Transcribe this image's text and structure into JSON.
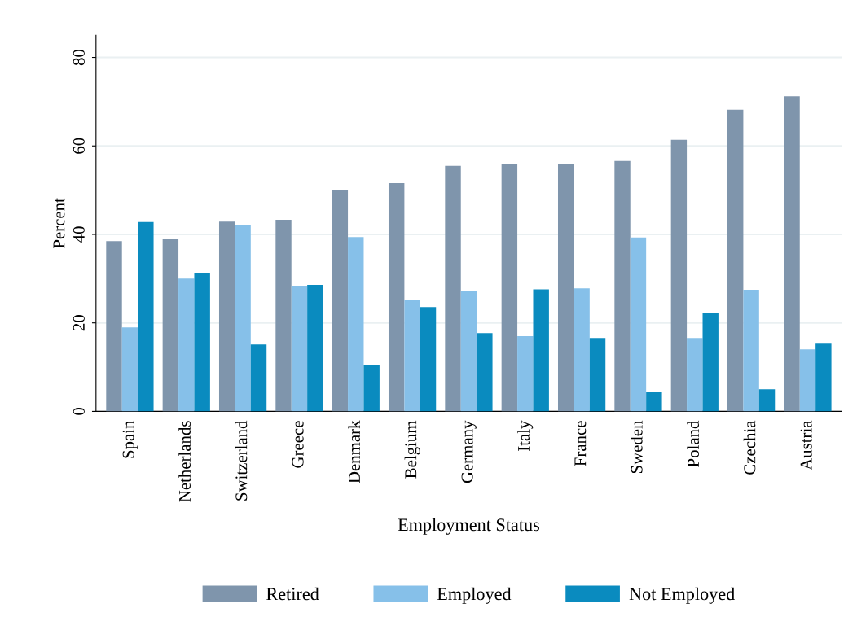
{
  "chart_data": {
    "type": "bar",
    "xlabel": "Employment Status",
    "ylabel": "Percent",
    "categories": [
      "Spain",
      "Netherlands",
      "Switzerland",
      "Greece",
      "Denmark",
      "Belgium",
      "Germany",
      "Italy",
      "France",
      "Sweden",
      "Poland",
      "Czechia",
      "Austria"
    ],
    "series": [
      {
        "name": "Retired",
        "color": "#7f95ac",
        "values": [
          38.5,
          38.9,
          42.9,
          43.3,
          50.1,
          51.6,
          55.5,
          56.0,
          56.0,
          56.6,
          61.4,
          68.2,
          71.2
        ]
      },
      {
        "name": "Employed",
        "color": "#86c0e9",
        "values": [
          19.0,
          30.0,
          42.2,
          28.4,
          39.4,
          25.1,
          27.1,
          17.0,
          27.8,
          39.3,
          16.6,
          27.5,
          14.0
        ]
      },
      {
        "name": "Not Employed",
        "color": "#0a8bbf",
        "values": [
          42.8,
          31.3,
          15.1,
          28.6,
          10.5,
          23.6,
          17.7,
          27.6,
          16.6,
          4.4,
          22.3,
          5.0,
          15.3
        ]
      }
    ],
    "ylim": [
      0,
      85
    ],
    "yticks": [
      0,
      20,
      40,
      60,
      80
    ],
    "grid": "y",
    "legend": "bottom"
  }
}
